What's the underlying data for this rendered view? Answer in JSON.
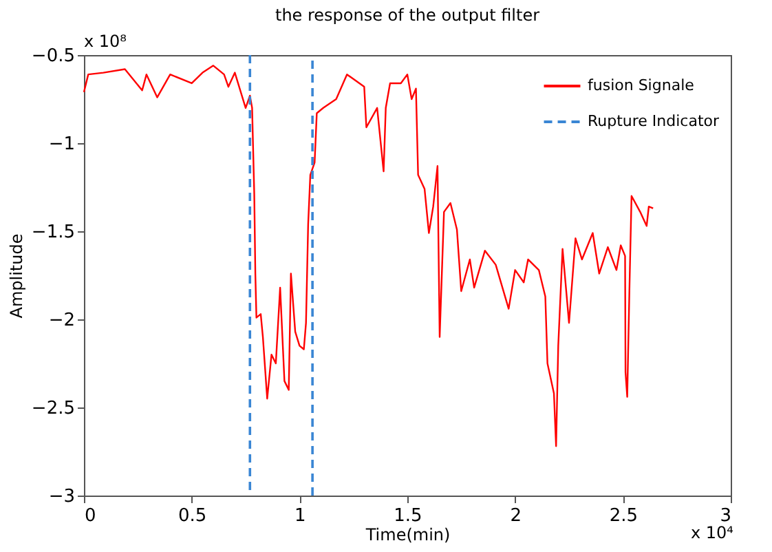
{
  "chart_data": {
    "type": "line",
    "title": "the response of the output filter",
    "xlabel": "Time(min)",
    "ylabel": "Amplitude",
    "annotations": [
      "x 10⁸",
      "x 10⁴"
    ],
    "xlim": [
      0,
      3
    ],
    "xticks": [
      0,
      0.5,
      1,
      1.5,
      2,
      2.5,
      3
    ],
    "ylim": [
      -3,
      -0.5
    ],
    "yticks": [
      -0.5,
      -1,
      -1.5,
      -2,
      -2.5,
      -3
    ],
    "grid": false,
    "legend": "top right",
    "marker": "none",
    "line_style": "solid",
    "series": [
      {
        "name": "fusion Signale",
        "color": "#ff0000",
        "x": [
          0,
          0.02,
          0.09,
          0.19,
          0.27,
          0.29,
          0.34,
          0.4,
          0.5,
          0.55,
          0.6,
          0.65,
          0.67,
          0.7,
          0.73,
          0.75,
          0.77,
          0.78,
          0.79,
          0.795,
          0.8,
          0.82,
          0.83,
          0.85,
          0.87,
          0.89,
          0.91,
          0.93,
          0.95,
          0.96,
          0.98,
          1.0,
          1.02,
          1.03,
          1.04,
          1.05,
          1.07,
          1.08,
          1.11,
          1.17,
          1.22,
          1.3,
          1.31,
          1.36,
          1.39,
          1.4,
          1.42,
          1.47,
          1.5,
          1.52,
          1.54,
          1.55,
          1.58,
          1.6,
          1.62,
          1.64,
          1.65,
          1.67,
          1.7,
          1.73,
          1.75,
          1.79,
          1.81,
          1.86,
          1.91,
          1.97,
          2.0,
          2.04,
          2.06,
          2.11,
          2.14,
          2.15,
          2.18,
          2.19,
          2.2,
          2.22,
          2.25,
          2.28,
          2.31,
          2.36,
          2.39,
          2.43,
          2.47,
          2.49,
          2.51,
          2.512,
          2.52,
          2.53,
          2.54,
          2.58,
          2.61,
          2.62,
          2.64
        ],
        "values": [
          -0.71,
          -0.61,
          -0.6,
          -0.58,
          -0.7,
          -0.61,
          -0.74,
          -0.61,
          -0.66,
          -0.6,
          -0.56,
          -0.61,
          -0.68,
          -0.6,
          -0.72,
          -0.8,
          -0.73,
          -0.8,
          -1.29,
          -1.74,
          -1.99,
          -1.97,
          -2.1,
          -2.45,
          -2.2,
          -2.25,
          -1.82,
          -2.35,
          -2.4,
          -1.74,
          -2.07,
          -2.15,
          -2.17,
          -2.02,
          -1.46,
          -1.18,
          -1.11,
          -0.83,
          -0.8,
          -0.75,
          -0.61,
          -0.68,
          -0.91,
          -0.8,
          -1.16,
          -0.8,
          -0.66,
          -0.66,
          -0.61,
          -0.75,
          -0.69,
          -1.18,
          -1.26,
          -1.51,
          -1.36,
          -1.13,
          -2.1,
          -1.39,
          -1.34,
          -1.49,
          -1.84,
          -1.66,
          -1.82,
          -1.61,
          -1.69,
          -1.94,
          -1.72,
          -1.79,
          -1.66,
          -1.72,
          -1.87,
          -2.25,
          -2.42,
          -2.72,
          -2.15,
          -1.6,
          -2.02,
          -1.54,
          -1.66,
          -1.51,
          -1.74,
          -1.59,
          -1.72,
          -1.58,
          -1.64,
          -2.3,
          -2.44,
          -1.84,
          -1.3,
          -1.39,
          -1.47,
          -1.36,
          -1.37
        ]
      },
      {
        "name": "Rupture Indicator",
        "color": "#3a86d4",
        "line_style": "dashed",
        "x": [
          0.77,
          0.77,
          null,
          1.06,
          1.06
        ],
        "values": [
          -0.5,
          -3,
          null,
          -3,
          -0.5
        ]
      }
    ]
  }
}
